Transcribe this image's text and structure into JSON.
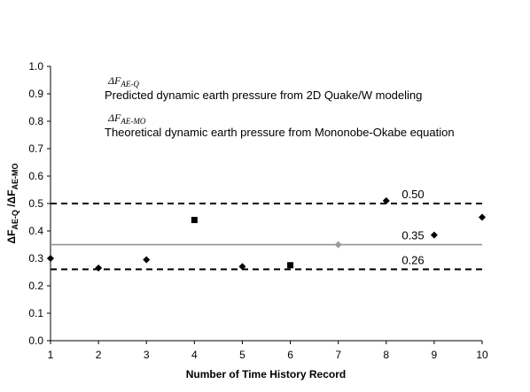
{
  "chart_data": {
    "type": "scatter",
    "xlabel": "Number of Time History Record",
    "ylabel": {
      "prefix_main": "ΔF",
      "sub_main": "AE-Q",
      "separator": " /",
      "prefix_denom": "ΔF",
      "sub_denom": "AE-MO"
    },
    "xlim": [
      1,
      10
    ],
    "ylim": [
      0,
      1.0
    ],
    "x_ticks": [
      "1",
      "2",
      "3",
      "4",
      "5",
      "6",
      "7",
      "8",
      "9",
      "10"
    ],
    "y_ticks": [
      "0.0",
      "0.1",
      "0.2",
      "0.3",
      "0.4",
      "0.5",
      "0.6",
      "0.7",
      "0.8",
      "0.9",
      "1.0"
    ],
    "grid": false,
    "series": [
      {
        "marker": "diamond",
        "points": [
          {
            "x": 1,
            "y": 0.3
          },
          {
            "x": 2,
            "y": 0.265
          },
          {
            "x": 3,
            "y": 0.295
          },
          {
            "x": 5,
            "y": 0.27
          },
          {
            "x": 8,
            "y": 0.51
          },
          {
            "x": 9,
            "y": 0.385
          },
          {
            "x": 10,
            "y": 0.45
          }
        ]
      },
      {
        "marker": "square",
        "points": [
          {
            "x": 4,
            "y": 0.44
          },
          {
            "x": 6,
            "y": 0.275
          }
        ]
      },
      {
        "marker": "diamond-light",
        "points": [
          {
            "x": 7,
            "y": 0.35
          }
        ]
      }
    ],
    "reference_lines": [
      {
        "y": 0.5,
        "label": "0.50",
        "style": "dashed",
        "color": "#000000"
      },
      {
        "y": 0.35,
        "label": "0.35",
        "style": "solid",
        "color": "#8c8c8c"
      },
      {
        "y": 0.26,
        "label": "0.26",
        "style": "dashed",
        "color": "#000000"
      }
    ],
    "legend": [
      {
        "symbol": "ΔF",
        "sub": "AE-Q",
        "description": "Predicted dynamic earth pressure from 2D Quake/W modeling"
      },
      {
        "symbol": "ΔF",
        "sub": "AE-MO",
        "description": "Theoretical dynamic earth pressure from Mononobe-Okabe equation"
      }
    ],
    "legend_position": "top-left"
  },
  "colors": {
    "marker": "#000000",
    "marker_light": "#9a9a9a",
    "axis": "#000000"
  }
}
